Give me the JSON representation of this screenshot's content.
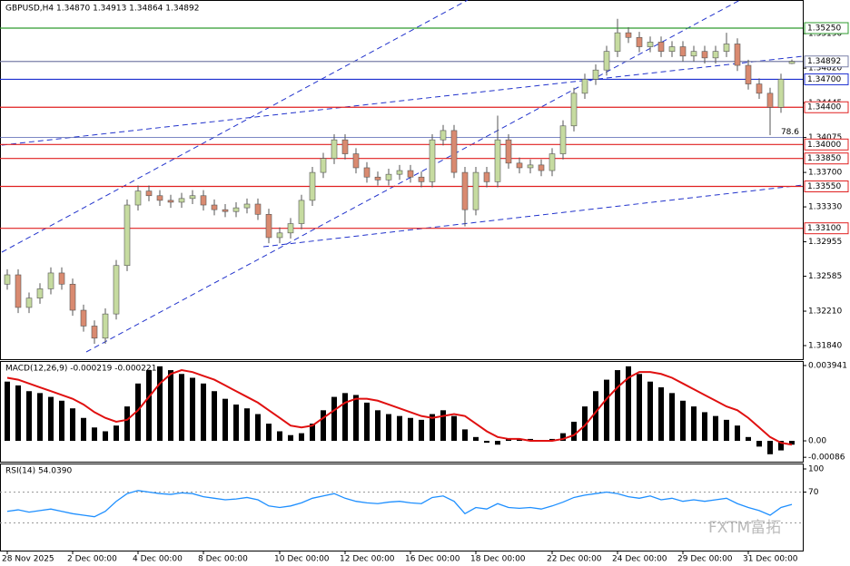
{
  "chart_data": [
    {
      "type": "candlestick",
      "title": "GBPUSD,H4 1.34870 1.34913 1.34864 1.34892",
      "categories": [
        "28 Nov 2025",
        null,
        null,
        null,
        null,
        null,
        "2 Dec 00:00",
        null,
        null,
        null,
        null,
        null,
        "4 Dec 00:00",
        null,
        null,
        null,
        null,
        null,
        "8 Dec 00:00",
        null,
        null,
        null,
        null,
        null,
        null,
        "10 Dec 00:00",
        null,
        null,
        null,
        null,
        null,
        "12 Dec 00:00",
        null,
        null,
        null,
        null,
        null,
        "16 Dec 00:00",
        null,
        null,
        null,
        null,
        null,
        "18 Dec 00:00",
        null,
        null,
        null,
        null,
        null,
        null,
        "22 Dec 00:00",
        null,
        null,
        null,
        null,
        null,
        "24 Dec 00:00",
        null,
        null,
        null,
        null,
        null,
        "29 Dec 00:00",
        null,
        null,
        null,
        null,
        null,
        "31 Dec 00:00",
        null,
        null,
        null,
        null
      ],
      "open": [
        1.325,
        1.326,
        1.3225,
        1.3235,
        1.3245,
        1.3262,
        1.325,
        1.3222,
        1.3205,
        1.3192,
        1.3218,
        1.327,
        1.3335,
        1.335,
        1.3345,
        1.334,
        1.3338,
        1.3342,
        1.3345,
        1.3335,
        1.333,
        1.3328,
        1.3332,
        1.3336,
        1.3325,
        1.33,
        1.3305,
        1.3315,
        1.334,
        1.337,
        1.3385,
        1.3405,
        1.339,
        1.3375,
        1.3365,
        1.3362,
        1.3368,
        1.3372,
        1.3365,
        1.336,
        1.3405,
        1.3415,
        1.337,
        1.333,
        1.337,
        1.336,
        1.3405,
        1.338,
        1.3375,
        1.3378,
        1.3372,
        1.339,
        1.342,
        1.3455,
        1.347,
        1.348,
        1.35,
        1.352,
        1.3515,
        1.3505,
        1.351,
        1.35,
        1.3505,
        1.3495,
        1.35,
        1.3493,
        1.35,
        1.3508,
        1.3485,
        1.3465,
        1.3455,
        1.344,
        1.3487
      ],
      "high": [
        1.3266,
        1.3266,
        1.3241,
        1.3251,
        1.3268,
        1.3268,
        1.3256,
        1.3228,
        1.3211,
        1.3224,
        1.3276,
        1.3341,
        1.3356,
        1.3356,
        1.3351,
        1.3346,
        1.3348,
        1.3351,
        1.3351,
        1.3341,
        1.3336,
        1.3338,
        1.3342,
        1.3342,
        1.3331,
        1.3311,
        1.3321,
        1.3346,
        1.3376,
        1.3391,
        1.3411,
        1.3411,
        1.3396,
        1.3381,
        1.3371,
        1.3374,
        1.3378,
        1.3378,
        1.3371,
        1.3411,
        1.3421,
        1.3421,
        1.3376,
        1.3376,
        1.3376,
        1.3431,
        1.3411,
        1.3386,
        1.3384,
        1.3384,
        1.3396,
        1.3426,
        1.3461,
        1.3476,
        1.3486,
        1.3506,
        1.3535,
        1.3526,
        1.3521,
        1.3516,
        1.3516,
        1.3511,
        1.3511,
        1.3506,
        1.3506,
        1.3506,
        1.352,
        1.3514,
        1.3491,
        1.3471,
        1.3461,
        1.3476,
        1.34913
      ],
      "low": [
        1.3244,
        1.3219,
        1.3219,
        1.3229,
        1.3239,
        1.3244,
        1.3216,
        1.3199,
        1.3186,
        1.3186,
        1.3212,
        1.3264,
        1.3329,
        1.3339,
        1.3334,
        1.3332,
        1.3332,
        1.3336,
        1.3329,
        1.3324,
        1.3322,
        1.3322,
        1.3326,
        1.3319,
        1.3294,
        1.3294,
        1.3299,
        1.3309,
        1.3334,
        1.3364,
        1.3379,
        1.3384,
        1.3369,
        1.3359,
        1.3356,
        1.3356,
        1.3362,
        1.3359,
        1.3354,
        1.3354,
        1.3399,
        1.3364,
        1.3312,
        1.3324,
        1.3354,
        1.3354,
        1.3374,
        1.3369,
        1.3369,
        1.3366,
        1.3366,
        1.3384,
        1.3414,
        1.3449,
        1.3464,
        1.3474,
        1.3494,
        1.3509,
        1.3499,
        1.3499,
        1.3494,
        1.3494,
        1.3489,
        1.3489,
        1.3487,
        1.3487,
        1.3494,
        1.3479,
        1.3459,
        1.3449,
        1.341,
        1.3434,
        1.34864
      ],
      "close": [
        1.326,
        1.3225,
        1.3235,
        1.3245,
        1.3262,
        1.325,
        1.3222,
        1.3205,
        1.3192,
        1.3218,
        1.327,
        1.3335,
        1.335,
        1.3345,
        1.334,
        1.3338,
        1.3342,
        1.3345,
        1.3335,
        1.333,
        1.3328,
        1.3332,
        1.3336,
        1.3325,
        1.33,
        1.3305,
        1.3315,
        1.334,
        1.337,
        1.3385,
        1.3405,
        1.339,
        1.3375,
        1.3365,
        1.3362,
        1.3368,
        1.3372,
        1.3365,
        1.336,
        1.3405,
        1.3415,
        1.337,
        1.333,
        1.337,
        1.336,
        1.3405,
        1.338,
        1.3375,
        1.3378,
        1.3372,
        1.339,
        1.342,
        1.3455,
        1.347,
        1.348,
        1.35,
        1.352,
        1.3515,
        1.3505,
        1.351,
        1.35,
        1.3505,
        1.3495,
        1.35,
        1.3493,
        1.35,
        1.3508,
        1.3485,
        1.3465,
        1.3455,
        1.344,
        1.347,
        1.34892
      ],
      "up_color": "#c6dba0",
      "down_color": "#d98a70",
      "ylim": [
        1.31694,
        1.35552
      ],
      "yticks": [
        {
          "value": 1.3519,
          "label": "1.35190"
        },
        {
          "value": 1.3482,
          "label": "1.34820"
        },
        {
          "value": 1.34445,
          "label": "1.34445"
        },
        {
          "value": 1.34075,
          "label": "1.34075"
        },
        {
          "value": 1.337,
          "label": "1.33700"
        },
        {
          "value": 1.3333,
          "label": "1.33330"
        },
        {
          "value": 1.32955,
          "label": "1.32955"
        },
        {
          "value": 1.32585,
          "label": "1.32585"
        },
        {
          "value": 1.3221,
          "label": "1.32210"
        },
        {
          "value": 1.3184,
          "label": "1.31840"
        }
      ],
      "levels": [
        {
          "value": 1.3525,
          "label": "1.35250",
          "color": "#2e9b2e"
        },
        {
          "value": 1.34892,
          "label": "1.34892",
          "color": "#7a7fa8"
        },
        {
          "value": 1.347,
          "label": "1.34700",
          "color": "#1c2fd0"
        },
        {
          "value": 1.344,
          "label": "1.34400",
          "color": "#e02020"
        },
        {
          "value": 1.34,
          "label": "1.34000",
          "color": "#e02020"
        },
        {
          "value": 1.3385,
          "label": "1.33850",
          "color": "#e02020"
        },
        {
          "value": 1.3355,
          "label": "1.33550",
          "color": "#e02020"
        },
        {
          "value": 1.331,
          "label": "1.33100",
          "color": "#e02020"
        }
      ],
      "fib": {
        "value": 1.34075,
        "label": "78.6",
        "color": "#5060b0"
      },
      "watermark": "FXTM富拓"
    },
    {
      "type": "macd",
      "title": "MACD(12,26,9) -0.000219 -0.000221",
      "histogram": [
        0.0031,
        0.0029,
        0.0026,
        0.0025,
        0.0023,
        0.0021,
        0.0017,
        0.0012,
        0.0007,
        0.0005,
        0.0008,
        0.0018,
        0.003,
        0.0037,
        0.0039,
        0.0037,
        0.0035,
        0.0033,
        0.003,
        0.0026,
        0.0022,
        0.0019,
        0.0017,
        0.0014,
        0.0009,
        0.0005,
        0.0003,
        0.0004,
        0.0009,
        0.0016,
        0.0023,
        0.0025,
        0.0024,
        0.002,
        0.0016,
        0.0014,
        0.0013,
        0.0012,
        0.0011,
        0.0014,
        0.0016,
        0.0013,
        0.0006,
        0.0002,
        -0.0001,
        -0.0002,
        0.0001,
        0.0001,
        0.0001,
        0.0,
        0.0001,
        0.0004,
        0.001,
        0.0018,
        0.0026,
        0.0032,
        0.0037,
        0.0039,
        0.0035,
        0.0031,
        0.0028,
        0.0025,
        0.0021,
        0.0018,
        0.0015,
        0.0013,
        0.0011,
        0.0008,
        0.0002,
        -0.0003,
        -0.0007,
        -0.0005,
        -0.0002
      ],
      "signal": [
        0.0033,
        0.0032,
        0.003,
        0.0028,
        0.0026,
        0.0024,
        0.0022,
        0.0019,
        0.0015,
        0.0012,
        0.001,
        0.0011,
        0.0016,
        0.0023,
        0.003,
        0.0035,
        0.0037,
        0.0036,
        0.0034,
        0.0032,
        0.0029,
        0.0026,
        0.0023,
        0.002,
        0.0016,
        0.0012,
        0.0008,
        0.0007,
        0.0008,
        0.0012,
        0.0016,
        0.002,
        0.0022,
        0.0022,
        0.0021,
        0.0019,
        0.0017,
        0.0015,
        0.0013,
        0.0012,
        0.0013,
        0.0014,
        0.0013,
        0.0009,
        0.0005,
        0.0002,
        0.0001,
        0.0001,
        0.0,
        0.0,
        0.0,
        0.0001,
        0.0003,
        0.0008,
        0.0015,
        0.0022,
        0.0028,
        0.0033,
        0.0036,
        0.0036,
        0.0035,
        0.0033,
        0.003,
        0.0027,
        0.0024,
        0.0021,
        0.0018,
        0.0016,
        0.0012,
        0.0007,
        0.0002,
        -0.0001,
        -0.0002
      ],
      "histogram_color": "#000000",
      "signal_color": "#e01010",
      "ylim": [
        -0.00109,
        0.00413
      ],
      "yticks": [
        0.003941,
        {
          "value": 0,
          "label": "0.00"
        },
        -0.00086
      ]
    },
    {
      "type": "line",
      "title": "RSI(14) 54.0390",
      "values": [
        45,
        47,
        44,
        46,
        48,
        45,
        42,
        40,
        38,
        45,
        58,
        68,
        72,
        70,
        68,
        67,
        69,
        68,
        64,
        62,
        60,
        61,
        63,
        60,
        52,
        50,
        52,
        56,
        62,
        65,
        68,
        62,
        58,
        56,
        55,
        57,
        58,
        56,
        55,
        63,
        65,
        58,
        42,
        50,
        48,
        55,
        50,
        49,
        50,
        48,
        52,
        57,
        63,
        66,
        68,
        70,
        68,
        64,
        62,
        65,
        60,
        62,
        58,
        60,
        58,
        60,
        62,
        55,
        50,
        46,
        40,
        50,
        54.039
      ],
      "color": "#1e8fff",
      "ylim": [
        -5.9,
        105.9
      ],
      "yticks": [
        100,
        70
      ],
      "levels": [
        70,
        30
      ]
    }
  ]
}
